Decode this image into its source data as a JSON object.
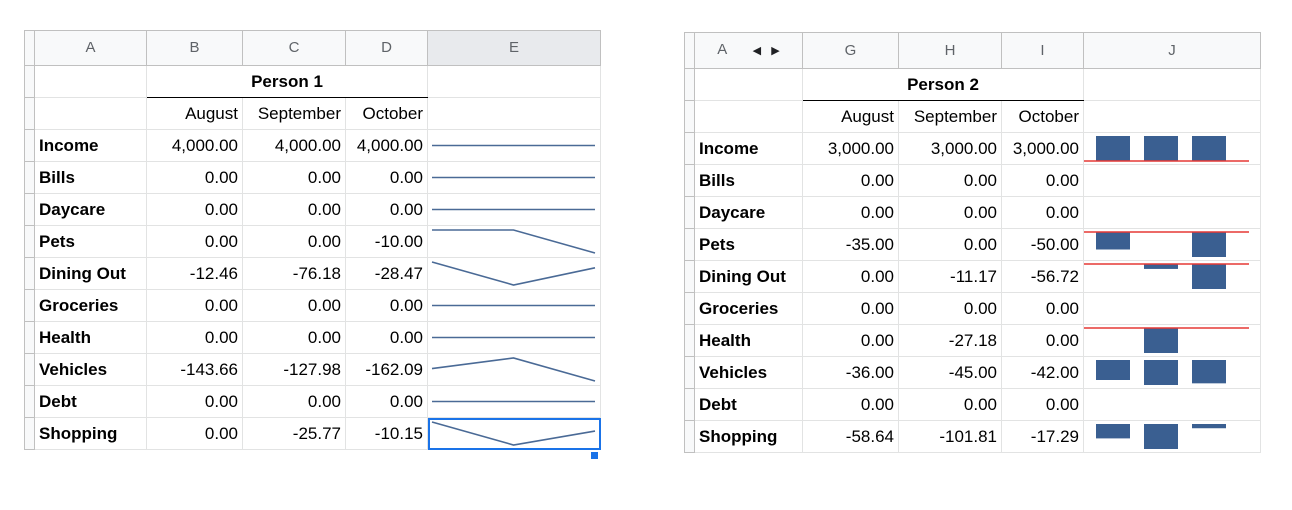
{
  "left": {
    "columns": [
      "A",
      "B",
      "C",
      "D",
      "E"
    ],
    "selected_column": "E",
    "person": "Person 1",
    "months": [
      "August",
      "September",
      "October"
    ],
    "rows": [
      {
        "label": "Income",
        "values": [
          "4,000.00",
          "4,000.00",
          "4,000.00"
        ],
        "data": [
          4000,
          4000,
          4000
        ]
      },
      {
        "label": "Bills",
        "values": [
          "0.00",
          "0.00",
          "0.00"
        ],
        "data": [
          0,
          0,
          0
        ]
      },
      {
        "label": "Daycare",
        "values": [
          "0.00",
          "0.00",
          "0.00"
        ],
        "data": [
          0,
          0,
          0
        ]
      },
      {
        "label": "Pets",
        "values": [
          "0.00",
          "0.00",
          "-10.00"
        ],
        "data": [
          0,
          0,
          -10
        ]
      },
      {
        "label": "Dining Out",
        "values": [
          "-12.46",
          "-76.18",
          "-28.47"
        ],
        "data": [
          -12.46,
          -76.18,
          -28.47
        ]
      },
      {
        "label": "Groceries",
        "values": [
          "0.00",
          "0.00",
          "0.00"
        ],
        "data": [
          0,
          0,
          0
        ]
      },
      {
        "label": "Health",
        "values": [
          "0.00",
          "0.00",
          "0.00"
        ],
        "data": [
          0,
          0,
          0
        ]
      },
      {
        "label": "Vehicles",
        "values": [
          "-143.66",
          "-127.98",
          "-162.09"
        ],
        "data": [
          -143.66,
          -127.98,
          -162.09
        ]
      },
      {
        "label": "Debt",
        "values": [
          "0.00",
          "0.00",
          "0.00"
        ],
        "data": [
          0,
          0,
          0
        ]
      },
      {
        "label": "Shopping",
        "values": [
          "0.00",
          "-25.77",
          "-10.15"
        ],
        "data": [
          0,
          -25.77,
          -10.15
        ]
      }
    ]
  },
  "right": {
    "columns": [
      "A",
      "G",
      "H",
      "I",
      "J"
    ],
    "nav_left_icon": "triangle-left-icon",
    "nav_right_icon": "triangle-right-icon",
    "person": "Person 2",
    "months": [
      "August",
      "September",
      "October"
    ],
    "rows": [
      {
        "label": "Income",
        "values": [
          "3,000.00",
          "3,000.00",
          "3,000.00"
        ],
        "data": [
          3000,
          3000,
          3000
        ]
      },
      {
        "label": "Bills",
        "values": [
          "0.00",
          "0.00",
          "0.00"
        ],
        "data": [
          0,
          0,
          0
        ]
      },
      {
        "label": "Daycare",
        "values": [
          "0.00",
          "0.00",
          "0.00"
        ],
        "data": [
          0,
          0,
          0
        ]
      },
      {
        "label": "Pets",
        "values": [
          "-35.00",
          "0.00",
          "-50.00"
        ],
        "data": [
          -35,
          0,
          -50
        ]
      },
      {
        "label": "Dining Out",
        "values": [
          "0.00",
          "-11.17",
          "-56.72"
        ],
        "data": [
          0,
          -11.17,
          -56.72
        ]
      },
      {
        "label": "Groceries",
        "values": [
          "0.00",
          "0.00",
          "0.00"
        ],
        "data": [
          0,
          0,
          0
        ]
      },
      {
        "label": "Health",
        "values": [
          "0.00",
          "-27.18",
          "0.00"
        ],
        "data": [
          0,
          -27.18,
          0
        ]
      },
      {
        "label": "Vehicles",
        "values": [
          "-36.00",
          "-45.00",
          "-42.00"
        ],
        "data": [
          -36,
          -45,
          -42
        ]
      },
      {
        "label": "Debt",
        "values": [
          "0.00",
          "0.00",
          "0.00"
        ],
        "data": [
          0,
          0,
          0
        ]
      },
      {
        "label": "Shopping",
        "values": [
          "-58.64",
          "-101.81",
          "-17.29"
        ],
        "data": [
          -58.64,
          -101.81,
          -17.29
        ]
      }
    ]
  },
  "colors": {
    "line_sparkline": "#4a6a96",
    "bar_sparkline": "#3a5f91",
    "axis_line": "#e53935",
    "selection": "#1a73e8"
  }
}
